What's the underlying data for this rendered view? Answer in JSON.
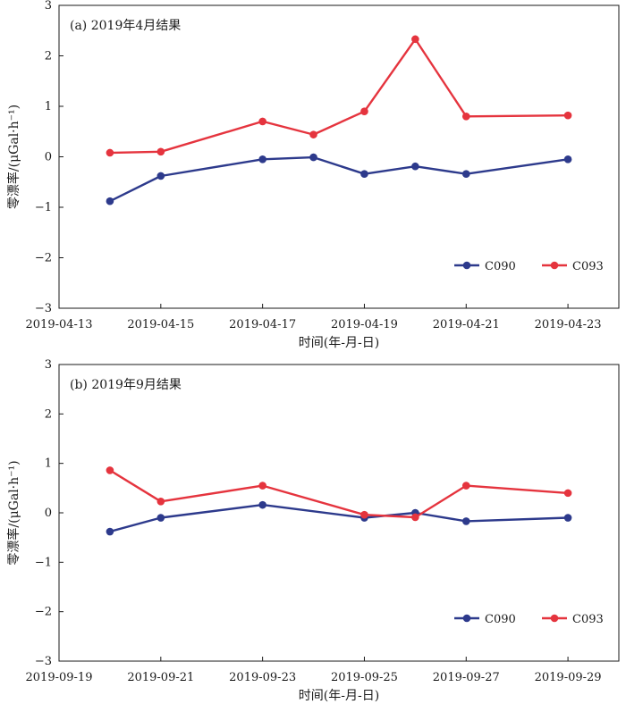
{
  "colors": {
    "C090": "#2d3a8c",
    "C093": "#e5343e"
  },
  "chart_data": [
    {
      "type": "line",
      "title": "(a) 2019年4月结果",
      "xlabel": "时间(年-月-日)",
      "ylabel": "零漂率/(μGal·h⁻¹)",
      "ylim": [
        -3,
        3
      ],
      "yticks": [
        "3",
        "2",
        "1",
        "0",
        "−1",
        "−2",
        "−3"
      ],
      "xticks": [
        "2019-04-13",
        "2019-04-15",
        "2019-04-17",
        "2019-04-19",
        "2019-04-21",
        "2019-04-23"
      ],
      "xlim": [
        "2019-04-13",
        "2019-04-24"
      ],
      "x": [
        "2019-04-14",
        "2019-04-15",
        "2019-04-17",
        "2019-04-18",
        "2019-04-19",
        "2019-04-20",
        "2019-04-21",
        "2019-04-23"
      ],
      "series": [
        {
          "name": "C090",
          "values": [
            -0.88,
            -0.38,
            -0.05,
            -0.01,
            -0.34,
            -0.19,
            -0.34,
            -0.05
          ]
        },
        {
          "name": "C093",
          "values": [
            0.08,
            0.1,
            0.7,
            0.44,
            0.9,
            2.33,
            0.8,
            0.82
          ]
        }
      ],
      "legend": "bottom-right",
      "grid": false
    },
    {
      "type": "line",
      "title": "(b) 2019年9月结果",
      "xlabel": "时间(年-月-日)",
      "ylabel": "零漂率/(μGal·h⁻¹)",
      "ylim": [
        -3,
        3
      ],
      "yticks": [
        "3",
        "2",
        "1",
        "0",
        "−1",
        "−2",
        "−3"
      ],
      "xticks": [
        "2019-09-19",
        "2019-09-21",
        "2019-09-23",
        "2019-09-25",
        "2019-09-27",
        "2019-09-29"
      ],
      "xlim": [
        "2019-09-19",
        "2019-09-30"
      ],
      "x": [
        "2019-09-20",
        "2019-09-21",
        "2019-09-23",
        "2019-09-25",
        "2019-09-26",
        "2019-09-27",
        "2019-09-29"
      ],
      "series": [
        {
          "name": "C090",
          "values": [
            -0.38,
            -0.1,
            0.16,
            -0.1,
            0.0,
            -0.17,
            -0.1
          ]
        },
        {
          "name": "C093",
          "values": [
            0.86,
            0.23,
            0.55,
            -0.04,
            -0.09,
            0.55,
            0.4
          ]
        }
      ],
      "legend": "bottom-right",
      "grid": false
    }
  ]
}
